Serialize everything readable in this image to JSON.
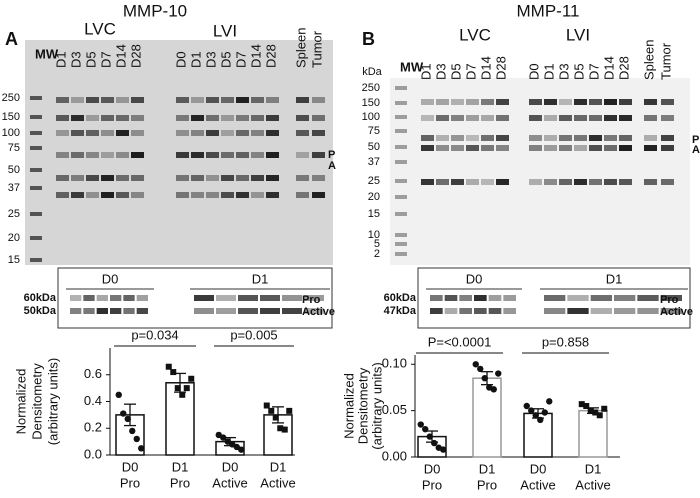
{
  "blots": [
    {
      "letter": "A",
      "title": "MMP-10",
      "mw_label": "MW",
      "kda_label": null,
      "groups": [
        {
          "label": "LVC",
          "lanes": [
            "D1",
            "D3",
            "D5",
            "D7",
            "D14",
            "D28"
          ]
        },
        {
          "label": "LVI",
          "lanes": [
            "D0",
            "D1",
            "D3",
            "D5",
            "D7",
            "D14",
            "D28"
          ]
        }
      ],
      "extra_lanes": [
        "Spleen",
        "Tumor"
      ],
      "markers": [
        250,
        150,
        100,
        75,
        50,
        37,
        25,
        20,
        15
      ],
      "band_labels": [
        "P",
        "A"
      ],
      "inset": {
        "groups": [
          "D0",
          "D1"
        ],
        "left_labels": [
          "60kDa",
          "50kDa"
        ],
        "right_labels": [
          "Pro",
          "Active"
        ]
      }
    },
    {
      "letter": "B",
      "title": "MMP-11",
      "mw_label": "MW",
      "kda_label": "kDa",
      "groups": [
        {
          "label": "LVC",
          "lanes": [
            "D1",
            "D3",
            "D5",
            "D7",
            "D14",
            "D28"
          ]
        },
        {
          "label": "LVI",
          "lanes": [
            "D0",
            "D1",
            "D3",
            "D5",
            "D7",
            "D14",
            "D28"
          ]
        }
      ],
      "extra_lanes": [
        "Spleen",
        "Tumor"
      ],
      "markers": [
        250,
        150,
        100,
        75,
        50,
        37,
        25,
        20,
        15,
        10,
        5,
        2
      ],
      "band_labels": [
        "P",
        "A"
      ],
      "inset": {
        "groups": [
          "D0",
          "D1"
        ],
        "left_labels": [
          "60kDa",
          "47kDa"
        ],
        "right_labels": [
          "Pro",
          "Active"
        ]
      }
    }
  ],
  "chart_data": [
    {
      "type": "bar",
      "ylabel": [
        "Normalized",
        "Densitometry",
        "(arbitrary units)"
      ],
      "categories": [
        [
          "D0",
          "Pro"
        ],
        [
          "D1",
          "Pro"
        ],
        [
          "D0",
          "Active"
        ],
        [
          "D1",
          "Active"
        ]
      ],
      "values": [
        0.3,
        0.54,
        0.1,
        0.3
      ],
      "errors": [
        0.08,
        0.07,
        0.03,
        0.06
      ],
      "points": [
        [
          0.45,
          0.31,
          0.27,
          0.18,
          0.12,
          0.05
        ],
        [
          0.66,
          0.62,
          0.5,
          0.45,
          0.5,
          0.57
        ],
        [
          0.15,
          0.13,
          0.1,
          0.08,
          0.06,
          0.04
        ],
        [
          0.37,
          0.33,
          0.28,
          0.2,
          0.19,
          0.33
        ]
      ],
      "marker_shapes": [
        "circle",
        "square",
        "circle",
        "square"
      ],
      "edge_colors": [
        "#111111",
        "#111111",
        "#111111",
        "#111111"
      ],
      "annotations": [
        {
          "text": "p=0.034",
          "from": 0,
          "to": 1
        },
        {
          "text": "p=0.005",
          "from": 2,
          "to": 3
        }
      ],
      "ylim": [
        0,
        0.8
      ],
      "yticks": [
        {
          "value": 0,
          "label": "0.0"
        },
        0.2,
        0.4,
        0.6
      ]
    },
    {
      "type": "bar",
      "ylabel": [
        "Normalized",
        "Densitometry",
        "(arbitrary units)"
      ],
      "categories": [
        [
          "D0",
          "Pro"
        ],
        [
          "D1",
          "Pro"
        ],
        [
          "D0",
          "Active"
        ],
        [
          "D1",
          "Active"
        ]
      ],
      "values": [
        0.022,
        0.085,
        0.047,
        0.05
      ],
      "errors": [
        0.006,
        0.007,
        0.005,
        0.003
      ],
      "points": [
        [
          0.035,
          0.03,
          0.022,
          0.015,
          0.01,
          0.008
        ],
        [
          0.1,
          0.095,
          0.085,
          0.075,
          0.073,
          0.09
        ],
        [
          0.055,
          0.05,
          0.045,
          0.04,
          0.048,
          0.06
        ],
        [
          0.057,
          0.055,
          0.05,
          0.048,
          0.045,
          0.052
        ]
      ],
      "marker_shapes": [
        "circle",
        "circle",
        "circle",
        "square"
      ],
      "edge_colors": [
        "#111111",
        "#999999",
        "#111111",
        "#999999"
      ],
      "annotations": [
        {
          "text": "P=<0.0001",
          "from": 0,
          "to": 1
        },
        {
          "text": "p=0.858",
          "from": 2,
          "to": 3
        }
      ],
      "ylim": [
        0,
        0.11
      ],
      "yticks": [
        {
          "value": 0,
          "label": "0.00"
        },
        {
          "value": 0.05,
          "label": "0.05"
        },
        {
          "value": 0.1,
          "label": "0.10"
        }
      ]
    }
  ]
}
